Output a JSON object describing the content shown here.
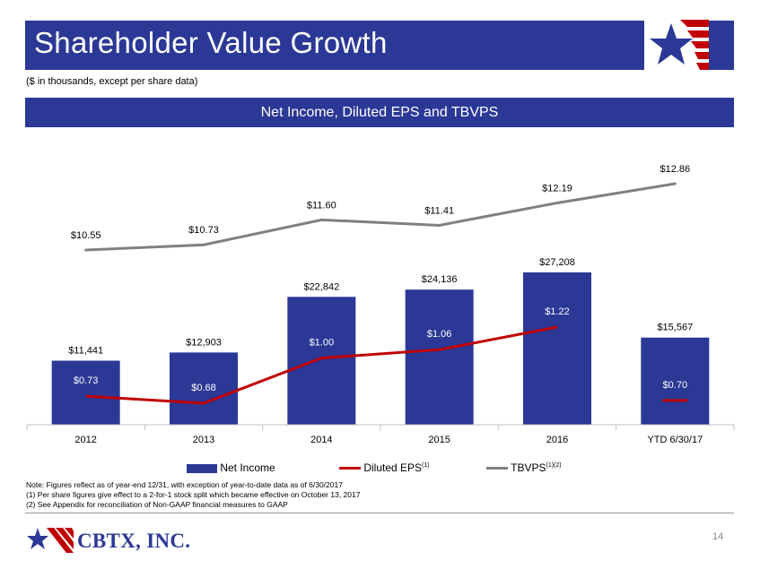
{
  "header": {
    "title": "Shareholder Value Growth",
    "subtitle": "($ in thousands, except per share data)"
  },
  "section": {
    "title": "Net Income, Diluted EPS and TBVPS"
  },
  "chart_data": {
    "type": "bar",
    "title": "Net Income, Diluted EPS and TBVPS",
    "categories": [
      "2012",
      "2013",
      "2014",
      "2015",
      "2016",
      "YTD 6/30/17"
    ],
    "series": [
      {
        "name": "Net Income",
        "kind": "bar",
        "color": "#2B3896",
        "values": [
          11441,
          12903,
          22842,
          24136,
          27208,
          15567
        ],
        "labels": [
          "$11,441",
          "$12,903",
          "$22,842",
          "$24,136",
          "$27,208",
          "$15,567"
        ]
      },
      {
        "name": "Diluted EPS",
        "superscript": "(1)",
        "kind": "line",
        "color": "#C00000",
        "values": [
          0.73,
          0.68,
          1.0,
          1.06,
          1.22,
          0.7
        ],
        "labels": [
          "$0.73",
          "$0.68",
          "$1.00",
          "$1.06",
          "$1.22",
          "$0.70"
        ]
      },
      {
        "name": "TBVPS",
        "superscript": "(1)(2)",
        "kind": "line",
        "color": "#808080",
        "values": [
          10.55,
          10.73,
          11.6,
          11.41,
          12.19,
          12.86
        ],
        "labels": [
          "$10.55",
          "$10.73",
          "$11.60",
          "$11.41",
          "$12.19",
          "$12.86"
        ]
      }
    ],
    "legend_position": "bottom"
  },
  "notes": [
    "Note: Figures reflect as of year-end 12/31, with exception of year-to-date data as of 6/30/2017",
    "(1) Per share figures give effect to a 2-for-1 stock split which became effective on October 13, 2017",
    "(2) See Appendix for reconciliation of Non-GAAP financial measures to GAAP"
  ],
  "footer": {
    "logo_text": "CBTX, INC.",
    "page_number": "14"
  },
  "colors": {
    "brand": "#2B3896",
    "accent": "#C00000",
    "gray": "#808080"
  }
}
